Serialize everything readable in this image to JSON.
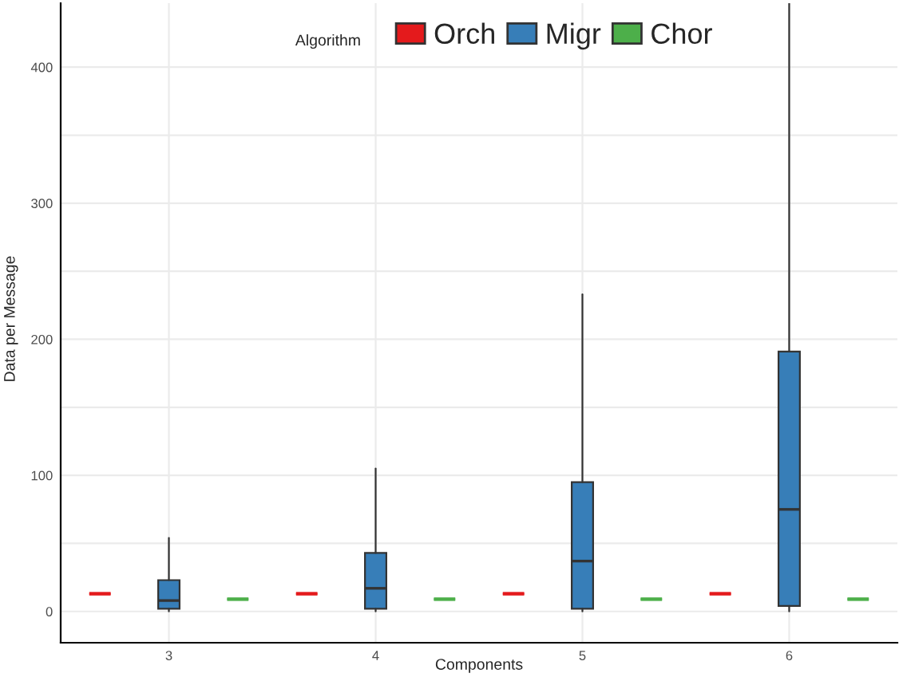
{
  "chart_data": {
    "type": "box",
    "categories": [
      null,
      "3",
      null,
      null,
      "4",
      null,
      null,
      "5",
      null,
      null,
      "6",
      null
    ],
    "xlabel": "Components",
    "ylabel": "Data per Message",
    "legend_title": "Algorithm",
    "legend": "top",
    "grid": true,
    "ylim": [
      -23,
      447
    ],
    "yticks": [
      0,
      {
        "value": 50,
        "label": null
      },
      100,
      {
        "value": 150,
        "label": null
      },
      200,
      {
        "value": 250,
        "label": null
      },
      300,
      {
        "value": 350,
        "label": null
      },
      400
    ],
    "series": [
      {
        "name": "Orch",
        "color": "#e41a1c",
        "boxes": [
          {
            "low": 13,
            "q1": 13,
            "median": 13,
            "q3": 13,
            "high": 13
          },
          null,
          null,
          {
            "low": 13,
            "q1": 13,
            "median": 13,
            "q3": 13,
            "high": 13
          },
          null,
          null,
          {
            "low": 13,
            "q1": 13,
            "median": 13,
            "q3": 13,
            "high": 13
          },
          null,
          null,
          {
            "low": 13,
            "q1": 13,
            "median": 13,
            "q3": 13,
            "high": 13
          },
          null,
          null
        ]
      },
      {
        "name": "Migr",
        "color": "#377eb8",
        "boxes": [
          null,
          {
            "low": 0,
            "q1": 2,
            "median": 8,
            "q3": 23,
            "high": 54
          },
          null,
          null,
          {
            "low": 0,
            "q1": 2,
            "median": 17,
            "q3": 43,
            "high": 105
          },
          null,
          null,
          {
            "low": 0,
            "q1": 2,
            "median": 37,
            "q3": 95,
            "high": 233
          },
          null,
          null,
          {
            "low": 0,
            "q1": 4,
            "median": 75,
            "q3": 191,
            "high": 447
          },
          null
        ]
      },
      {
        "name": "Chor",
        "color": "#4daf4a",
        "boxes": [
          null,
          null,
          {
            "low": 9,
            "q1": 9,
            "median": 9,
            "q3": 9,
            "high": 9
          },
          null,
          null,
          {
            "low": 9,
            "q1": 9,
            "median": 9,
            "q3": 9,
            "high": 9
          },
          null,
          null,
          {
            "low": 9,
            "q1": 9,
            "median": 9,
            "q3": 9,
            "high": 9
          },
          null,
          null,
          {
            "low": 9,
            "q1": 9,
            "median": 9,
            "q3": 9,
            "high": 9
          }
        ]
      }
    ]
  }
}
